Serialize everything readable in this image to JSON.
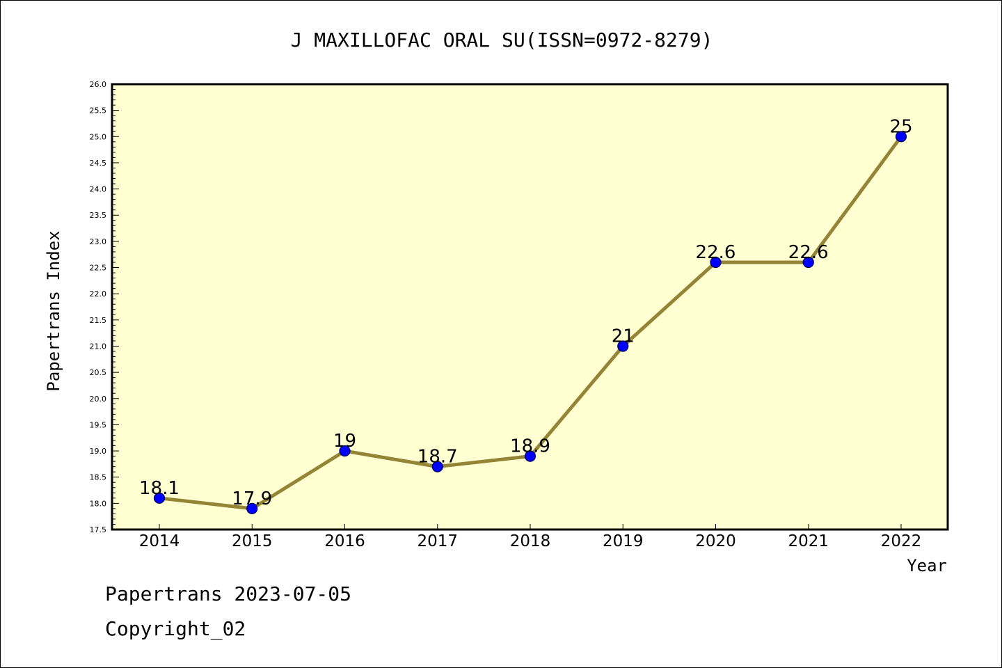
{
  "footer": {
    "line1": "Papertrans 2023-07-05",
    "line2": "Copyright_02"
  },
  "colors": {
    "plot_background": "#ffffd2",
    "line": "#938535",
    "marker": "#0000ff",
    "marker_edge": "#00005a"
  },
  "chart_data": {
    "type": "line",
    "title": "J MAXILLOFAC ORAL SU(ISSN=0972-8279)",
    "xlabel": "Year",
    "ylabel": "Papertrans Index",
    "ylim": [
      17.5,
      26.0
    ],
    "ytick_step": 0.5,
    "yticks": [
      "17.5",
      "18.0",
      "18.5",
      "19.0",
      "19.5",
      "20.0",
      "20.5",
      "21.0",
      "21.5",
      "22.0",
      "22.5",
      "23.0",
      "23.5",
      "24.0",
      "24.5",
      "25.0",
      "25.5",
      "26.0"
    ],
    "categories": [
      "2014",
      "2015",
      "2016",
      "2017",
      "2018",
      "2019",
      "2020",
      "2021",
      "2022"
    ],
    "values": [
      18.1,
      17.9,
      19.0,
      18.7,
      18.9,
      21.0,
      22.6,
      22.6,
      25.0
    ],
    "data_labels": [
      "18.1",
      "17.9",
      "19",
      "18.7",
      "18.9",
      "21",
      "22.6",
      "22.6",
      "25"
    ],
    "grid": false,
    "legend": "none"
  }
}
